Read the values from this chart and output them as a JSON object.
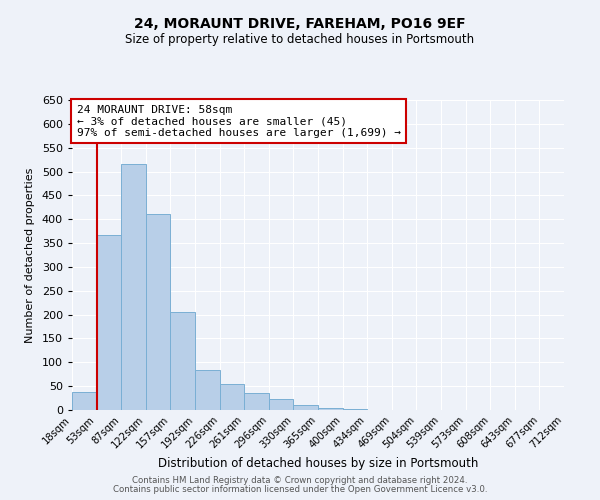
{
  "title": "24, MORAUNT DRIVE, FAREHAM, PO16 9EF",
  "subtitle": "Size of property relative to detached houses in Portsmouth",
  "xlabel": "Distribution of detached houses by size in Portsmouth",
  "ylabel": "Number of detached properties",
  "bar_heights": [
    38,
    367,
    515,
    412,
    205,
    83,
    55,
    36,
    24,
    11,
    5,
    3,
    0,
    0,
    1,
    0,
    0,
    1,
    0,
    1
  ],
  "bar_color": "#b8cfe8",
  "bar_edge_color": "#7aafd4",
  "marker_color": "#cc0000",
  "ylim": [
    0,
    650
  ],
  "yticks": [
    0,
    50,
    100,
    150,
    200,
    250,
    300,
    350,
    400,
    450,
    500,
    550,
    600,
    650
  ],
  "annotation_title": "24 MORAUNT DRIVE: 58sqm",
  "annotation_line1": "← 3% of detached houses are smaller (45)",
  "annotation_line2": "97% of semi-detached houses are larger (1,699) →",
  "annotation_box_color": "#cc0000",
  "footer1": "Contains HM Land Registry data © Crown copyright and database right 2024.",
  "footer2": "Contains public sector information licensed under the Open Government Licence v3.0.",
  "background_color": "#eef2f9",
  "grid_color": "#ffffff",
  "all_labels": [
    "18sqm",
    "53sqm",
    "87sqm",
    "122sqm",
    "157sqm",
    "192sqm",
    "226sqm",
    "261sqm",
    "296sqm",
    "330sqm",
    "365sqm",
    "400sqm",
    "434sqm",
    "469sqm",
    "504sqm",
    "539sqm",
    "573sqm",
    "608sqm",
    "643sqm",
    "677sqm",
    "712sqm"
  ]
}
